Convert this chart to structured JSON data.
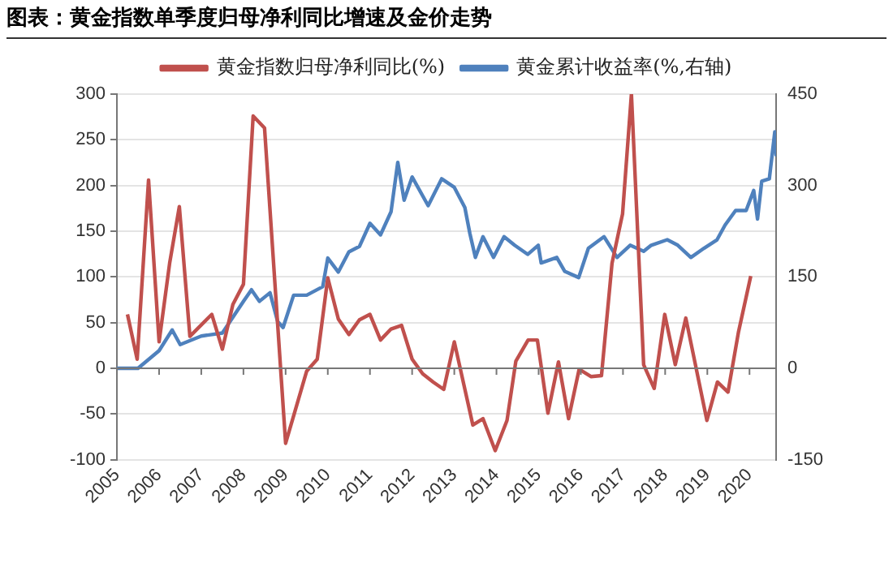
{
  "chart_data": {
    "type": "line",
    "title": "图表：黄金指数单季度归母净利同比增速及金价走势",
    "series": [
      {
        "name": "黄金指数归母净利同比(%)",
        "color": "#c0504d",
        "x": [
          2005.25,
          2005.48,
          2005.75,
          2006.0,
          2006.25,
          2006.48,
          2006.73,
          2007.25,
          2007.5,
          2007.75,
          2008.0,
          2008.23,
          2008.5,
          2009.0,
          2009.5,
          2009.75,
          2010.0,
          2010.25,
          2010.5,
          2010.75,
          2011.0,
          2011.25,
          2011.5,
          2011.75,
          2012.0,
          2012.25,
          2012.5,
          2012.75,
          2013.0,
          2013.44,
          2013.68,
          2013.97,
          2014.25,
          2014.46,
          2014.75,
          2014.97,
          2015.22,
          2015.47,
          2015.71,
          2015.96,
          2016.24,
          2016.49,
          2016.74,
          2016.99,
          2017.2,
          2017.49,
          2017.74,
          2017.99,
          2018.24,
          2018.49,
          2018.99,
          2019.24,
          2019.49,
          2019.74,
          2020.03
        ],
        "values": [
          59,
          10,
          206,
          29,
          115,
          177,
          35,
          59,
          21,
          70,
          92,
          276,
          263,
          -82,
          -3,
          10,
          99,
          54,
          37,
          53,
          59,
          31,
          43,
          47,
          10,
          -6,
          -15,
          -23,
          29,
          -62,
          -55,
          -90,
          -57,
          8,
          31,
          31,
          -49,
          7,
          -55,
          -1,
          -9,
          -8,
          115,
          169,
          300,
          4,
          -22,
          59,
          4,
          55,
          -57,
          -15,
          -26,
          40,
          101
        ]
      },
      {
        "name": "黄金累计收益率(%,右轴)",
        "color": "#4f81bd",
        "axis": "y2",
        "x": [
          2005.0,
          2005.5,
          2006.0,
          2006.31,
          2006.5,
          2007.0,
          2007.5,
          2008.0,
          2008.19,
          2008.38,
          2008.63,
          2008.81,
          2008.94,
          2009.19,
          2009.5,
          2009.88,
          2010.0,
          2010.25,
          2010.5,
          2010.75,
          2011.0,
          2011.25,
          2011.5,
          2011.66,
          2011.81,
          2012.0,
          2012.38,
          2012.7,
          2013.0,
          2013.25,
          2013.37,
          2013.5,
          2013.68,
          2013.93,
          2014.18,
          2014.43,
          2014.74,
          2014.99,
          2015.06,
          2015.43,
          2015.62,
          2015.95,
          2016.18,
          2016.55,
          2016.86,
          2017.17,
          2017.49,
          2017.67,
          2018.05,
          2018.3,
          2018.61,
          2018.92,
          2019.23,
          2019.42,
          2019.67,
          2019.92,
          2020.1,
          2020.19,
          2020.29,
          2020.47,
          2020.6,
          2020.63
        ],
        "values": [
          0,
          0,
          29,
          63,
          39,
          53,
          58,
          110,
          129,
          110,
          124,
          77,
          67,
          120,
          120,
          134,
          181,
          158,
          191,
          200,
          238,
          219,
          257,
          338,
          276,
          314,
          267,
          311,
          297,
          264,
          221,
          182,
          216,
          182,
          216,
          202,
          187,
          202,
          173,
          182,
          159,
          149,
          197,
          216,
          182,
          202,
          192,
          202,
          211,
          202,
          182,
          197,
          211,
          235,
          259,
          259,
          292,
          245,
          307,
          311,
          388,
          350
        ]
      }
    ],
    "xlim": [
      2005,
      2020.63
    ],
    "xticks": [
      2005,
      2006,
      2007,
      2008,
      2009,
      2010,
      2011,
      2012,
      2013,
      2014,
      2015,
      2016,
      2017,
      2018,
      2019,
      2020
    ],
    "ylim": [
      -100,
      300
    ],
    "yticks": [
      -100,
      -50,
      0,
      50,
      100,
      150,
      200,
      250,
      300
    ],
    "y2lim": [
      -150,
      450
    ],
    "y2ticks": [
      -150,
      0,
      150,
      300,
      450
    ],
    "grid": "y",
    "legend": "top",
    "marker": "none",
    "line_style": "solid"
  }
}
